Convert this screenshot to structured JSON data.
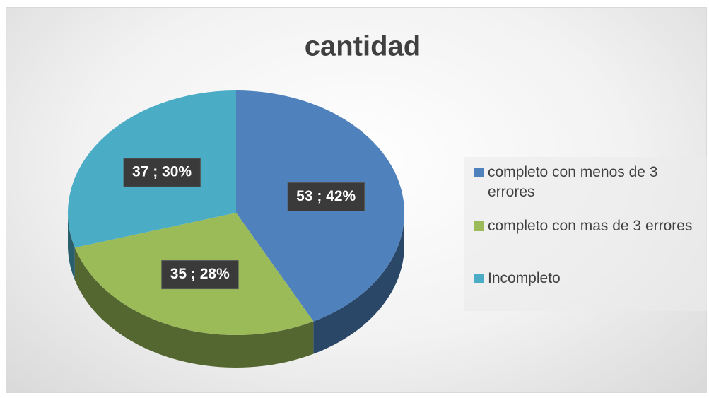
{
  "chart_data": {
    "type": "pie",
    "title": "cantidad",
    "categories": [
      "completo con menos de 3 errores",
      "completo con mas de 3 errores",
      "Incompleto"
    ],
    "values": [
      53,
      35,
      37
    ],
    "value_labels": [
      "53 ; 42%",
      "35 ; 28%",
      "37 ; 30%"
    ],
    "colors": [
      "#4f81bd",
      "#9bbb59",
      "#4bacc6"
    ],
    "legend": "right"
  }
}
